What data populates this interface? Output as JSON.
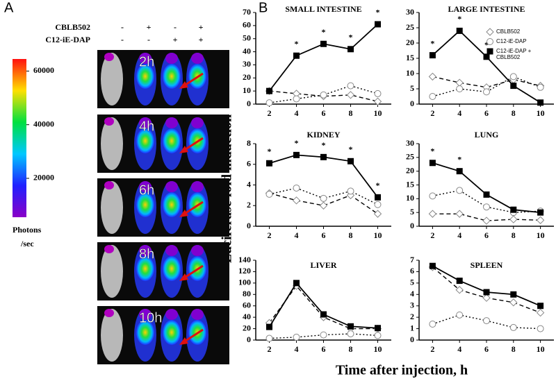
{
  "panel_a": {
    "label": "A",
    "rows": [
      {
        "label": "CBLB502",
        "signs": [
          "-",
          "+",
          "-",
          "+"
        ]
      },
      {
        "label": "C12-iE-DAP",
        "signs": [
          "-",
          "-",
          "+",
          "+"
        ]
      }
    ],
    "times": [
      "2h",
      "4h",
      "6h",
      "8h",
      "10h"
    ],
    "colorbar": {
      "lim": [
        5500,
        64500
      ],
      "ticks": [
        20000,
        40000,
        60000
      ],
      "label": [
        "Photons",
        "/sec"
      ]
    }
  },
  "panel_b": {
    "label": "B",
    "ylabel": "Luciferase fold induction",
    "xlabel": "Time after injection, h"
  },
  "chart_data": [
    {
      "type": "line",
      "title": "SMALL  INTESTINE",
      "x": [
        2,
        4,
        6,
        8,
        10
      ],
      "xlim": [
        1,
        11
      ],
      "xticks": [
        2,
        4,
        6,
        8,
        10
      ],
      "ylim": [
        0,
        70
      ],
      "yticks": [
        0,
        10,
        20,
        30,
        40,
        50,
        60,
        70
      ],
      "series": [
        {
          "color": "#000000",
          "marker": "diamond",
          "dash": "dashed",
          "values": [
            10,
            8,
            6,
            7,
            2
          ]
        },
        {
          "color": "#000000",
          "marker": "circle",
          "dash": "dotted",
          "values": [
            1,
            4,
            7,
            14,
            8
          ]
        },
        {
          "color": "#000000",
          "marker": "square",
          "dash": "solid",
          "values": [
            10,
            37,
            46,
            42,
            61
          ]
        }
      ],
      "annotations": [
        {
          "text": "*",
          "x": 4
        },
        {
          "text": "*",
          "x": 6
        },
        {
          "text": "*",
          "x": 8
        },
        {
          "text": "*",
          "x": 10
        }
      ]
    },
    {
      "type": "line",
      "title": "LARGE  INTESTINE",
      "x": [
        2,
        4,
        6,
        8,
        10
      ],
      "xlim": [
        1,
        11
      ],
      "xticks": [
        2,
        4,
        6,
        8,
        10
      ],
      "ylim": [
        0,
        30
      ],
      "yticks": [
        0,
        5,
        10,
        15,
        20,
        25,
        30
      ],
      "series": [
        {
          "color": "#000000",
          "marker": "diamond",
          "dash": "dashed",
          "values": [
            9,
            7,
            5.5,
            8,
            6
          ]
        },
        {
          "color": "#000000",
          "marker": "circle",
          "dash": "dotted",
          "values": [
            2.5,
            5,
            4,
            9,
            5.5
          ]
        },
        {
          "color": "#000000",
          "marker": "square",
          "dash": "solid",
          "values": [
            16,
            24,
            15.5,
            6,
            0.5
          ]
        }
      ],
      "annotations": [
        {
          "text": "*",
          "x": 2
        },
        {
          "text": "*",
          "x": 4
        },
        {
          "text": "*",
          "x": 6
        }
      ],
      "legend": {
        "position": "upper right",
        "entries": [
          [
            "CBLB502"
          ],
          [
            "C12-iE-DAP"
          ],
          [
            "C12-iE-DAP +",
            "CBLB502"
          ]
        ]
      }
    },
    {
      "type": "line",
      "title": "KIDNEY",
      "x": [
        2,
        4,
        6,
        8,
        10
      ],
      "xlim": [
        1,
        11
      ],
      "xticks": [
        2,
        4,
        6,
        8,
        10
      ],
      "ylim": [
        0,
        8
      ],
      "yticks": [
        0,
        2,
        4,
        6,
        8
      ],
      "series": [
        {
          "color": "#000000",
          "marker": "diamond",
          "dash": "dashed",
          "values": [
            3.2,
            2.5,
            2,
            3,
            1.2
          ]
        },
        {
          "color": "#000000",
          "marker": "circle",
          "dash": "dotted",
          "values": [
            3.1,
            3.7,
            2.7,
            3.4,
            2.1
          ]
        },
        {
          "color": "#000000",
          "marker": "square",
          "dash": "solid",
          "values": [
            6.1,
            6.9,
            6.7,
            6.3,
            2.8
          ]
        }
      ],
      "annotations": [
        {
          "text": "*",
          "x": 2
        },
        {
          "text": "*",
          "x": 4
        },
        {
          "text": "*",
          "x": 6
        },
        {
          "text": "*",
          "x": 8
        },
        {
          "text": "*",
          "x": 10
        }
      ]
    },
    {
      "type": "line",
      "title": "LUNG",
      "x": [
        2,
        4,
        6,
        8,
        10
      ],
      "xlim": [
        1,
        11
      ],
      "xticks": [
        2,
        4,
        6,
        8,
        10
      ],
      "ylim": [
        0,
        30
      ],
      "yticks": [
        0,
        5,
        10,
        15,
        20,
        25,
        30
      ],
      "series": [
        {
          "color": "#000000",
          "marker": "diamond",
          "dash": "dashed",
          "values": [
            4.5,
            4.5,
            2,
            2.5,
            2.2
          ]
        },
        {
          "color": "#000000",
          "marker": "circle",
          "dash": "dotted",
          "values": [
            11,
            13,
            7,
            5,
            5.5
          ]
        },
        {
          "color": "#000000",
          "marker": "square",
          "dash": "solid",
          "values": [
            23,
            20,
            11.5,
            6,
            5
          ]
        }
      ],
      "annotations": [
        {
          "text": "*",
          "x": 2
        },
        {
          "text": "*",
          "x": 4
        }
      ]
    },
    {
      "type": "line",
      "title": "LIVER",
      "x": [
        2,
        4,
        6,
        8,
        10
      ],
      "xlim": [
        1,
        11
      ],
      "xticks": [
        2,
        4,
        6,
        8,
        10
      ],
      "ylim": [
        0,
        140
      ],
      "yticks": [
        0,
        20,
        40,
        60,
        80,
        100,
        120,
        140
      ],
      "series": [
        {
          "color": "#000000",
          "marker": "diamond",
          "dash": "dashed",
          "values": [
            30,
            95,
            40,
            20,
            20
          ]
        },
        {
          "color": "#000000",
          "marker": "circle",
          "dash": "dotted",
          "values": [
            3,
            5,
            9,
            11,
            8
          ]
        },
        {
          "color": "#000000",
          "marker": "square",
          "dash": "solid",
          "values": [
            23,
            100,
            45,
            24,
            21
          ]
        }
      ]
    },
    {
      "type": "line",
      "title": "SPLEEN",
      "x": [
        2,
        4,
        6,
        8,
        10
      ],
      "xlim": [
        1,
        11
      ],
      "xticks": [
        2,
        4,
        6,
        8,
        10
      ],
      "ylim": [
        0,
        7
      ],
      "yticks": [
        0,
        1,
        2,
        3,
        4,
        5,
        6,
        7
      ],
      "series": [
        {
          "color": "#000000",
          "marker": "diamond",
          "dash": "dashed",
          "values": [
            6.4,
            4.4,
            3.7,
            3.3,
            2.4
          ]
        },
        {
          "color": "#000000",
          "marker": "circle",
          "dash": "dotted",
          "values": [
            1.4,
            2.2,
            1.7,
            1.1,
            1.0
          ]
        },
        {
          "color": "#000000",
          "marker": "square",
          "dash": "solid",
          "values": [
            6.5,
            5.2,
            4.2,
            4.0,
            3.0
          ]
        }
      ]
    }
  ]
}
